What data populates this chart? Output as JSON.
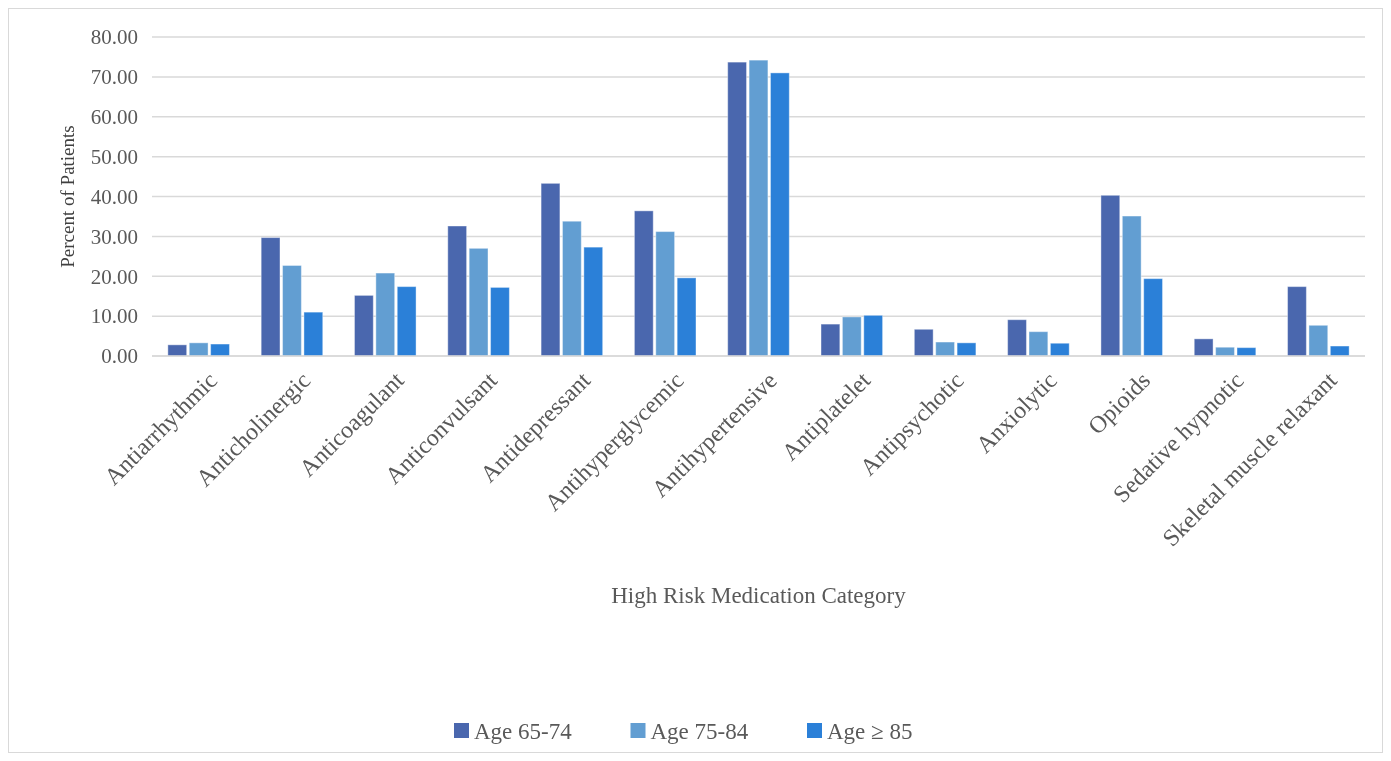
{
  "chart_data": {
    "type": "bar",
    "xlabel": "High Risk Medication Category",
    "ylabel": "Percent of Patients",
    "categories": [
      "Antiarrhythmic",
      "Anticholinergic",
      "Anticoagulant",
      "Anticonvulsant",
      "Antidepressant",
      "Antihyperglycemic",
      "Antihypertensive",
      "Antiplatelet",
      "Antipsychotic",
      "Anxiolytic",
      "Opioids",
      "Sedative hypnotic",
      "Skeletal muscle relaxant"
    ],
    "series": [
      {
        "name": "Age 65-74",
        "color": "#4a67ae",
        "values": [
          2.8,
          29.7,
          15.2,
          32.6,
          43.3,
          36.4,
          73.7,
          8.0,
          6.7,
          9.1,
          40.3,
          4.3,
          17.4
        ]
      },
      {
        "name": "Age 75-84",
        "color": "#629ed2",
        "values": [
          3.3,
          22.7,
          20.8,
          27.0,
          33.8,
          31.2,
          74.2,
          9.8,
          3.5,
          6.1,
          35.1,
          2.2,
          7.7
        ]
      },
      {
        "name": "Age ≥ 85",
        "color": "#2b80d8",
        "values": [
          3.0,
          11.0,
          17.4,
          17.2,
          27.3,
          19.6,
          71.0,
          10.2,
          3.3,
          3.2,
          19.4,
          2.1,
          2.5
        ]
      }
    ],
    "ylim": [
      0,
      80
    ],
    "yticks": [
      {
        "value": 0,
        "label": "0.00"
      },
      {
        "value": 10,
        "label": "10.00"
      },
      {
        "value": 20,
        "label": "20.00"
      },
      {
        "value": 30,
        "label": "30.00"
      },
      {
        "value": 40,
        "label": "40.00"
      },
      {
        "value": 50,
        "label": "50.00"
      },
      {
        "value": 60,
        "label": "60.00"
      },
      {
        "value": 70,
        "label": "70.00"
      },
      {
        "value": 80,
        "label": "80.00"
      }
    ],
    "grid": "y",
    "legend": "bottom"
  }
}
